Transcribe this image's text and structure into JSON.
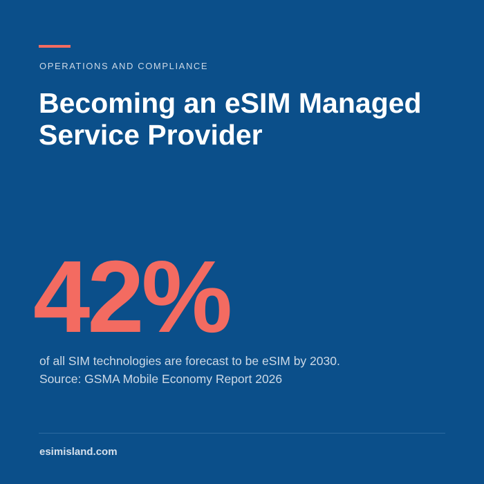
{
  "header": {
    "category": "OPERATIONS AND COMPLIANCE",
    "title": "Becoming an eSIM Managed Service Provider"
  },
  "stat": {
    "value": "42%",
    "description": "of all SIM technologies are forecast to be eSIM by 2030.",
    "source": "Source: GSMA Mobile Economy Report 2026"
  },
  "footer": {
    "website": "esimisland.com"
  },
  "colors": {
    "background": "#0b4f8a",
    "accent": "#f36b61",
    "text_primary": "#ffffff",
    "text_secondary": "#cdd9e6"
  }
}
